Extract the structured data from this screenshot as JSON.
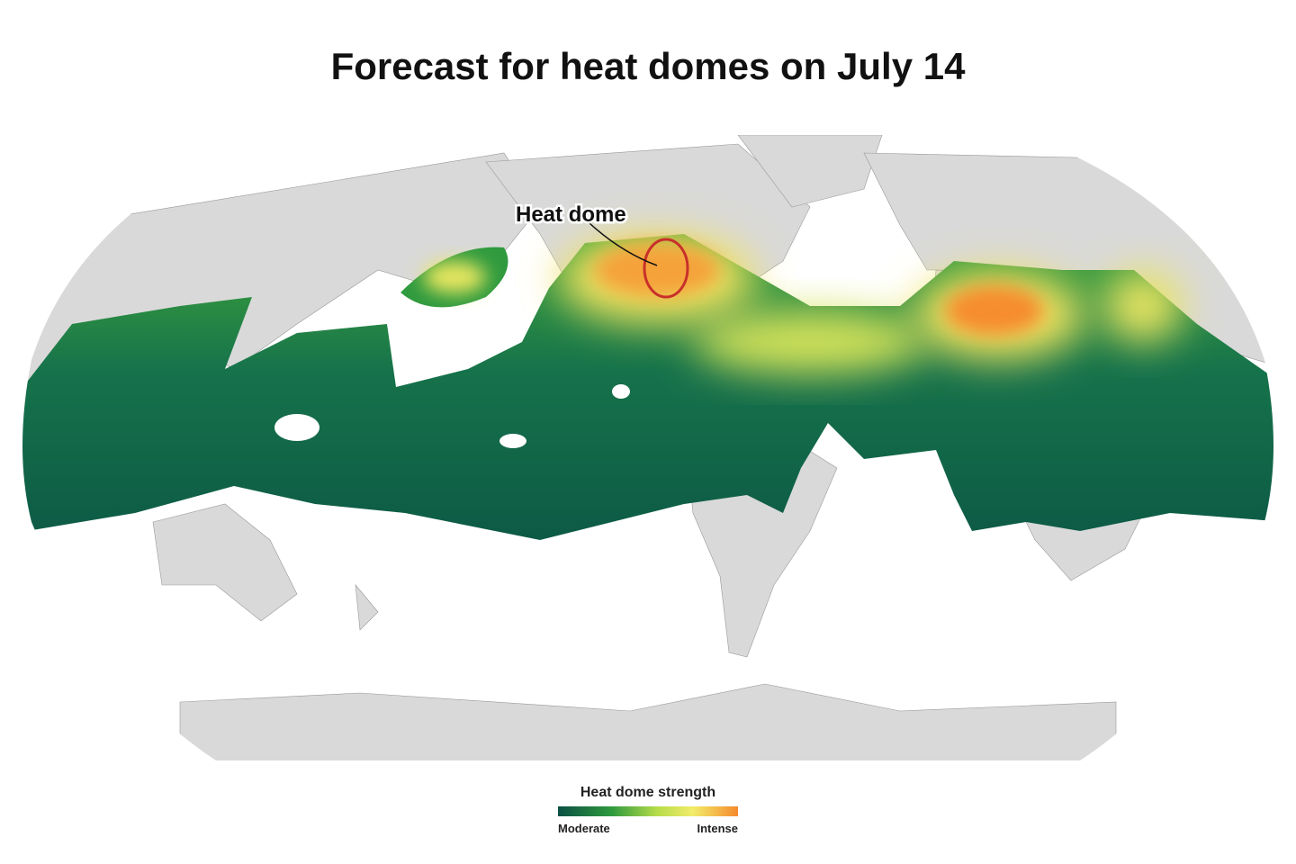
{
  "header": {
    "title": "Forecast for heat domes on July 14"
  },
  "map": {
    "annotation": "Heat dome"
  },
  "legend": {
    "title": "Heat dome strength",
    "low": "Moderate",
    "high": "Intense"
  }
}
